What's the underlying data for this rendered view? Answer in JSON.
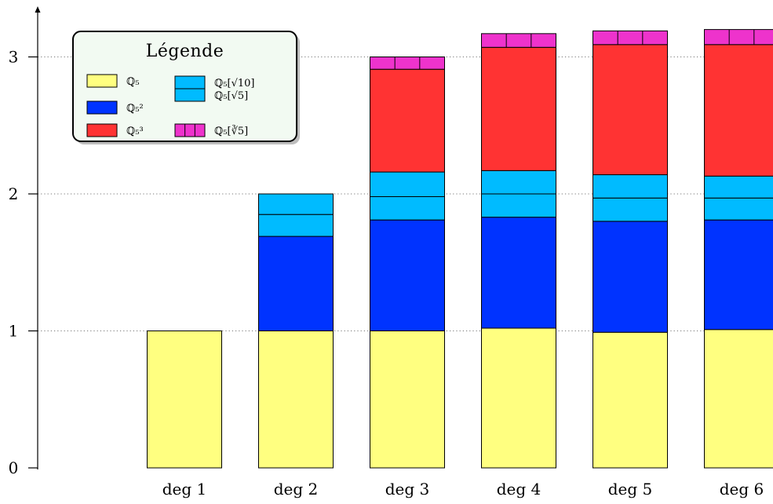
{
  "chart_data": {
    "type": "bar",
    "stacked": true,
    "categories": [
      "deg 1",
      "deg 2",
      "deg 3",
      "deg 4",
      "deg 5",
      "deg 6"
    ],
    "y_ticks": [
      "0",
      "1",
      "2",
      "3"
    ],
    "ylim": [
      0,
      3.3
    ],
    "grid": "dotted horizontal guides at 1, 2, 3",
    "legend_title": "Légende",
    "legend_placement": "top-left",
    "series": [
      {
        "name": "ℚ₅",
        "color": "#ffff80",
        "values": [
          1.0,
          1.0,
          1.0,
          1.02,
          0.99,
          1.01
        ]
      },
      {
        "name": "ℚ₅²",
        "color": "#0033ff",
        "values": [
          0,
          0.69,
          0.81,
          0.81,
          0.81,
          0.8
        ]
      },
      {
        "name": "ℚ₅[√10]",
        "color": "#00bbff",
        "split": true,
        "values": [
          0,
          0.16,
          0.17,
          0.17,
          0.17,
          0.16
        ]
      },
      {
        "name": "ℚ₅[√5]",
        "color": "#00bbff",
        "values": [
          0,
          0.15,
          0.18,
          0.17,
          0.17,
          0.16
        ]
      },
      {
        "name": "ℚ₅³",
        "color": "#ff3333",
        "values": [
          0,
          0,
          0.75,
          0.9,
          0.95,
          0.96
        ]
      },
      {
        "name": "ℚ₅[∛5]",
        "color": "#ee33cc",
        "segmented": true,
        "values": [
          0,
          0,
          0.09,
          0.1,
          0.1,
          0.11
        ]
      }
    ],
    "legend_items": [
      {
        "label": "ℚ₅",
        "color": "#ffff80"
      },
      {
        "label": "ℚ₅²",
        "color": "#0033ff"
      },
      {
        "label": "ℚ₅³",
        "color": "#ff3333"
      },
      {
        "label": "ℚ₅[√10]",
        "label2": "ℚ₅[√5]",
        "color": "#00bbff",
        "split": true
      },
      {
        "label": "ℚ₅[∛5]",
        "color": "#ee33cc",
        "segmented": true
      }
    ]
  }
}
